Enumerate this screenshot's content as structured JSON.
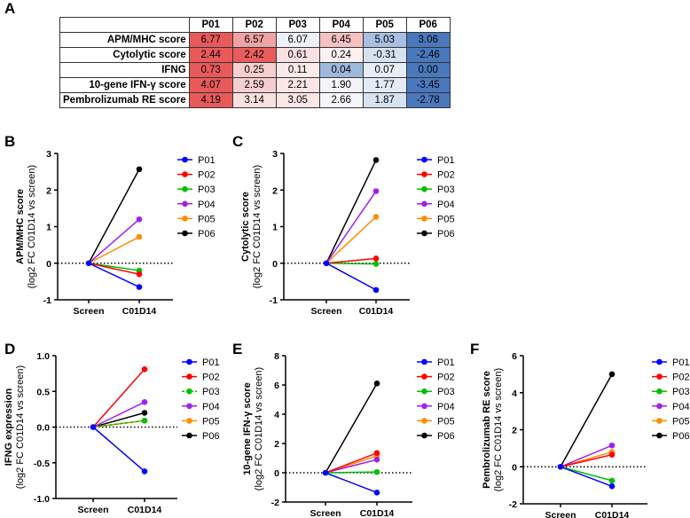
{
  "panel_letters": [
    "A",
    "B",
    "C",
    "D",
    "E",
    "F"
  ],
  "table": {
    "columns": [
      "P01",
      "P02",
      "P03",
      "P04",
      "P05",
      "P06"
    ],
    "rows": [
      {
        "label": "APM/MHC score",
        "values": [
          "6.77",
          "6.57",
          "6.07",
          "6.45",
          "5.03",
          "3.06"
        ],
        "colors": [
          "#e85a5a",
          "#f0a3a3",
          "#eef1f8",
          "#f5c2c2",
          "#a9bfe0",
          "#4a78bd"
        ]
      },
      {
        "label": "Cytolytic score",
        "values": [
          "2.44",
          "2.42",
          "0.61",
          "0.24",
          "-0.31",
          "-2.46"
        ],
        "colors": [
          "#e85a5a",
          "#e95d5d",
          "#fae0e0",
          "#fdf0f0",
          "#d6e1f0",
          "#4a78bd"
        ]
      },
      {
        "label": "IFNG",
        "values": [
          "0.73",
          "0.25",
          "0.11",
          "0.04",
          "0.07",
          "0.00"
        ],
        "colors": [
          "#e85a5a",
          "#f6d0d0",
          "#fbeaea",
          "#9fb8de",
          "#e6edf7",
          "#4a78bd"
        ]
      },
      {
        "label": "10-gene IFN-γ score",
        "values": [
          "4.07",
          "2.59",
          "2.21",
          "1.90",
          "1.77",
          "-3.45"
        ],
        "colors": [
          "#e85a5a",
          "#f5cfcf",
          "#fbe6e6",
          "#f4f4f8",
          "#e4ebf6",
          "#4a78bd"
        ]
      },
      {
        "label": "Pembrolizumab RE score",
        "values": [
          "4.19",
          "3.14",
          "3.05",
          "2.66",
          "1.87",
          "-2.78"
        ],
        "colors": [
          "#e85a5a",
          "#fbe0e0",
          "#fce6e6",
          "#f5f6fa",
          "#d8e2f1",
          "#4a78bd"
        ]
      }
    ]
  },
  "chart_data": [
    {
      "panel": "B",
      "type": "line",
      "ylabel": "APM/MHC score",
      "ylabel2": "(log2 FC C01D14 vs screen)",
      "categories": [
        "Screen",
        "C01D14"
      ],
      "ylim": [
        -1,
        3
      ],
      "yticks": [
        "-1",
        "0",
        "1",
        "2",
        "3"
      ],
      "tickvals": [
        -1,
        0,
        1,
        2,
        3
      ],
      "series": [
        {
          "name": "P01",
          "color": "#0000ff",
          "values": [
            0,
            -0.65
          ]
        },
        {
          "name": "P02",
          "color": "#ff0000",
          "values": [
            0,
            -0.3
          ]
        },
        {
          "name": "P03",
          "color": "#00c000",
          "values": [
            0,
            -0.2
          ]
        },
        {
          "name": "P04",
          "color": "#a020f0",
          "values": [
            0,
            1.2
          ]
        },
        {
          "name": "P05",
          "color": "#ff8c00",
          "values": [
            0,
            0.72
          ]
        },
        {
          "name": "P06",
          "color": "#000000",
          "values": [
            0,
            2.57
          ]
        }
      ]
    },
    {
      "panel": "C",
      "type": "line",
      "ylabel": "Cytolytic score",
      "ylabel2": "(log2 FC C01D14 vs screen)",
      "categories": [
        "Screen",
        "C01D14"
      ],
      "ylim": [
        -1,
        3
      ],
      "yticks": [
        "-1",
        "0",
        "1",
        "2",
        "3"
      ],
      "tickvals": [
        -1,
        0,
        1,
        2,
        3
      ],
      "series": [
        {
          "name": "P01",
          "color": "#0000ff",
          "values": [
            0,
            -0.73
          ]
        },
        {
          "name": "P02",
          "color": "#ff0000",
          "values": [
            0,
            0.13
          ]
        },
        {
          "name": "P03",
          "color": "#00c000",
          "values": [
            0,
            -0.02
          ]
        },
        {
          "name": "P04",
          "color": "#a020f0",
          "values": [
            0,
            1.97
          ]
        },
        {
          "name": "P05",
          "color": "#ff8c00",
          "values": [
            0,
            1.27
          ]
        },
        {
          "name": "P06",
          "color": "#000000",
          "values": [
            0,
            2.82
          ]
        }
      ]
    },
    {
      "panel": "D",
      "type": "line",
      "ylabel": "IFNG expression",
      "ylabel2": "(log2 FC C01D14 vs screen)",
      "categories": [
        "Screen",
        "C01D14"
      ],
      "ylim": [
        -1,
        1
      ],
      "yticks": [
        "-1.0",
        "-0.5",
        "0.0",
        "0.5",
        "1.0"
      ],
      "tickvals": [
        -1,
        -0.5,
        0,
        0.5,
        1
      ],
      "series": [
        {
          "name": "P01",
          "color": "#0000ff",
          "values": [
            0,
            -0.62
          ]
        },
        {
          "name": "P02",
          "color": "#ff0000",
          "values": [
            0,
            0.81
          ]
        },
        {
          "name": "P03",
          "color": "#00c000",
          "values": [
            0,
            0.09
          ],
          "dashed": true
        },
        {
          "name": "P04",
          "color": "#a020f0",
          "values": [
            0,
            0.35
          ]
        },
        {
          "name": "P05",
          "color": "#ff8c00",
          "values": [
            0,
            0.09
          ]
        },
        {
          "name": "P06",
          "color": "#000000",
          "values": [
            0,
            0.2
          ]
        }
      ]
    },
    {
      "panel": "E",
      "type": "line",
      "ylabel": "10-gene IFN-γ score",
      "ylabel2": "(log2 FC C01D14 vs screen)",
      "categories": [
        "Screen",
        "C01D14"
      ],
      "ylim": [
        -2,
        8
      ],
      "yticks": [
        "-2",
        "0",
        "2",
        "4",
        "6",
        "8"
      ],
      "tickvals": [
        -2,
        0,
        2,
        4,
        6,
        8
      ],
      "series": [
        {
          "name": "P01",
          "color": "#0000ff",
          "values": [
            0,
            -1.35
          ]
        },
        {
          "name": "P02",
          "color": "#ff0000",
          "values": [
            0,
            1.35
          ]
        },
        {
          "name": "P03",
          "color": "#00c000",
          "values": [
            0,
            0.05
          ]
        },
        {
          "name": "P04",
          "color": "#a020f0",
          "values": [
            0,
            0.9
          ]
        },
        {
          "name": "P05",
          "color": "#ff8c00",
          "values": [
            0,
            1.15
          ]
        },
        {
          "name": "P06",
          "color": "#000000",
          "values": [
            0,
            6.1
          ]
        }
      ]
    },
    {
      "panel": "F",
      "type": "line",
      "ylabel": "Pembrolizumab RE score",
      "ylabel2": "(log2 FC C01D14 vs screen)",
      "categories": [
        "Screen",
        "C01D14"
      ],
      "ylim": [
        -2,
        6
      ],
      "yticks": [
        "-2",
        "0",
        "2",
        "4",
        "6"
      ],
      "tickvals": [
        -2,
        0,
        2,
        4,
        6
      ],
      "series": [
        {
          "name": "P01",
          "color": "#0000ff",
          "values": [
            0,
            -1.05
          ]
        },
        {
          "name": "P02",
          "color": "#ff0000",
          "values": [
            0,
            0.65
          ]
        },
        {
          "name": "P03",
          "color": "#00c000",
          "values": [
            0,
            -0.75
          ]
        },
        {
          "name": "P04",
          "color": "#a020f0",
          "values": [
            0,
            1.15
          ]
        },
        {
          "name": "P05",
          "color": "#ff8c00",
          "values": [
            0,
            0.8
          ]
        },
        {
          "name": "P06",
          "color": "#000000",
          "values": [
            0,
            5.0
          ]
        }
      ]
    }
  ]
}
